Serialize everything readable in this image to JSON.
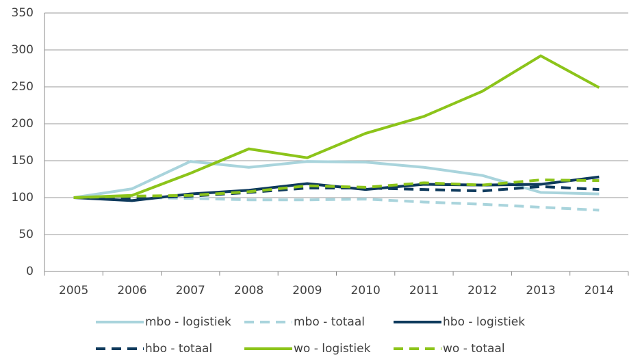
{
  "chart_data": {
    "type": "line",
    "categories": [
      "2005",
      "2006",
      "2007",
      "2008",
      "2009",
      "2010",
      "2011",
      "2012",
      "2013",
      "2014"
    ],
    "series": [
      {
        "name": "mbo - logistiek",
        "color": "#a9d4dc",
        "dashed": false,
        "values": [
          100,
          112,
          149,
          141,
          149,
          148,
          141,
          130,
          107,
          105
        ]
      },
      {
        "name": "mbo - totaal",
        "color": "#a9d4dc",
        "dashed": true,
        "values": [
          100,
          100,
          99,
          97,
          97,
          98,
          94,
          91,
          87,
          83
        ]
      },
      {
        "name": "hbo - logistiek",
        "color": "#0e3a5c",
        "dashed": false,
        "values": [
          100,
          96,
          105,
          110,
          119,
          111,
          118,
          117,
          118,
          128
        ]
      },
      {
        "name": "hbo - totaal",
        "color": "#0e3a5c",
        "dashed": true,
        "values": [
          100,
          99,
          102,
          107,
          113,
          113,
          111,
          109,
          115,
          111
        ]
      },
      {
        "name": "wo - logistiek",
        "color": "#8cc41a",
        "dashed": false,
        "values": [
          100,
          103,
          133,
          166,
          154,
          187,
          210,
          244,
          292,
          249
        ]
      },
      {
        "name": "wo - totaal",
        "color": "#8cc41a",
        "dashed": true,
        "values": [
          100,
          102,
          103,
          108,
          116,
          114,
          120,
          117,
          124,
          123
        ]
      }
    ],
    "ylim": [
      0,
      350
    ],
    "yticks": [
      0,
      50,
      100,
      150,
      200,
      250,
      300,
      350
    ],
    "grid": true,
    "legend": "bottom"
  }
}
